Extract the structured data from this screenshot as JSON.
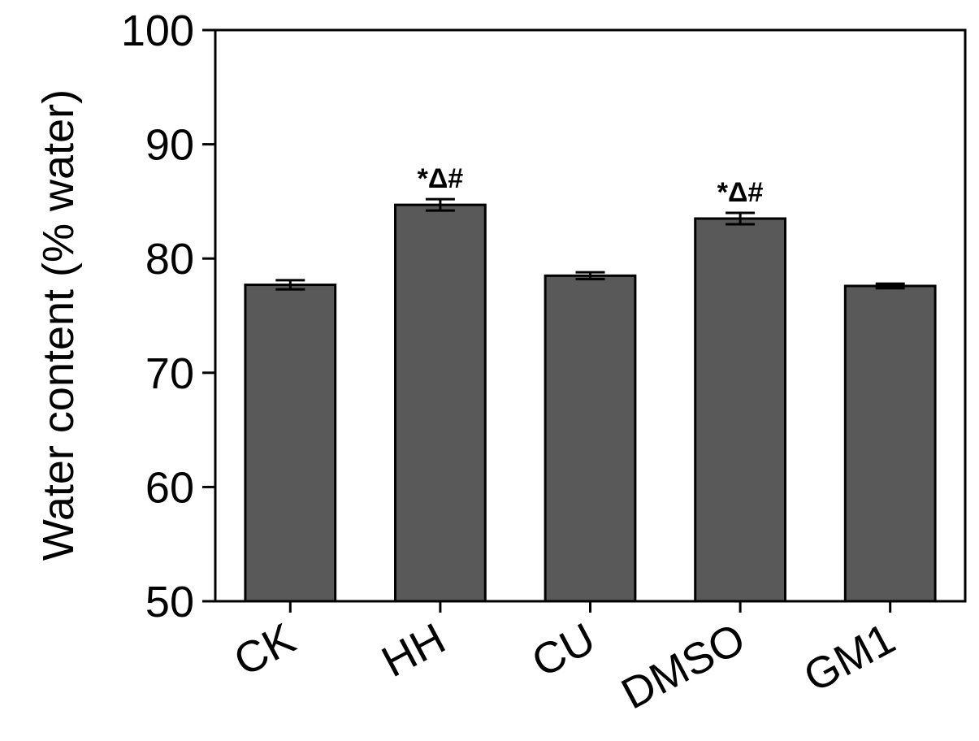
{
  "chart_data": {
    "type": "bar",
    "title": "",
    "xlabel": "",
    "ylabel": "Water content (% water)",
    "ylim": [
      50,
      100
    ],
    "yticks": [
      "50",
      "60",
      "70",
      "80",
      "90",
      "100"
    ],
    "grid": false,
    "categories": [
      "CK",
      "HH",
      "CU",
      "DMSO",
      "GM1"
    ],
    "values": [
      77.7,
      84.7,
      78.5,
      83.5,
      77.6
    ],
    "errors": [
      0.4,
      0.5,
      0.3,
      0.5,
      0.2
    ],
    "annotations": [
      "",
      "*Δ#",
      "",
      "*Δ#",
      ""
    ],
    "bar_color": "#595959",
    "edge_color": "#000000"
  }
}
